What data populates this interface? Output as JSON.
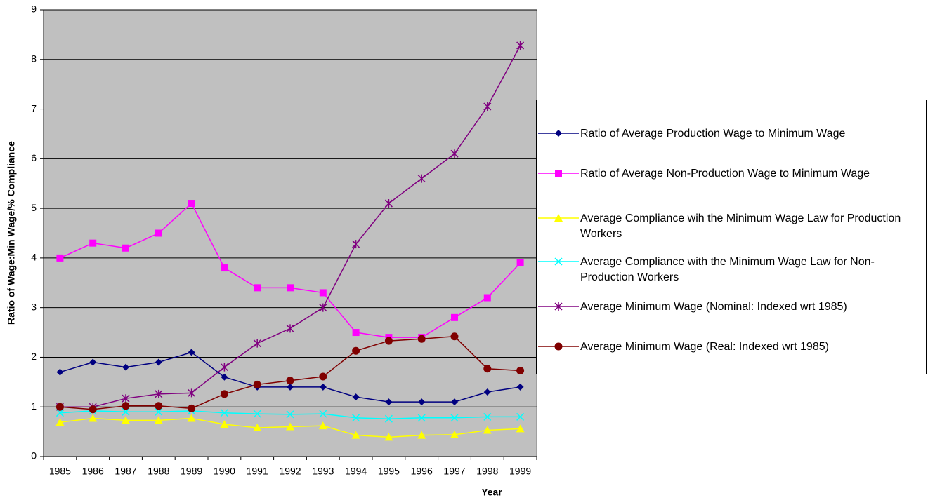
{
  "chart_data": {
    "type": "line",
    "x_label": "Year",
    "y_label": "Ratio of Wage:Min Wage/% Compliance",
    "categories": [
      "1985",
      "1986",
      "1987",
      "1988",
      "1989",
      "1990",
      "1991",
      "1992",
      "1993",
      "1994",
      "1995",
      "1996",
      "1997",
      "1998",
      "1999"
    ],
    "ylim": [
      0,
      9
    ],
    "yticks": [
      0,
      1,
      2,
      3,
      4,
      5,
      6,
      7,
      8,
      9
    ],
    "grid": true,
    "legend": "right",
    "series": [
      {
        "name": "Ratio of Average Production Wage to Minimum Wage",
        "color": "#000080",
        "marker": "diamond",
        "values": [
          1.7,
          1.9,
          1.8,
          1.9,
          2.1,
          1.6,
          1.4,
          1.4,
          1.4,
          1.2,
          1.1,
          1.1,
          1.1,
          1.3,
          1.4
        ]
      },
      {
        "name": "Ratio of Average Non-Production Wage to Minimum Wage",
        "color": "#FF00FF",
        "marker": "square",
        "values": [
          4.0,
          4.3,
          4.2,
          4.5,
          5.1,
          3.8,
          3.4,
          3.4,
          3.3,
          2.5,
          2.4,
          2.4,
          2.8,
          3.2,
          3.9
        ]
      },
      {
        "name": "Average Compliance wih the Minimum Wage Law for Production Workers",
        "color": "#FFFF00",
        "marker": "triangle",
        "values": [
          0.69,
          0.77,
          0.73,
          0.73,
          0.77,
          0.65,
          0.58,
          0.6,
          0.62,
          0.43,
          0.39,
          0.43,
          0.44,
          0.53,
          0.56
        ]
      },
      {
        "name": "Average Compliance with the Minimum Wage Law for Non-Production Workers",
        "color": "#00FFFF",
        "marker": "x",
        "values": [
          0.88,
          0.92,
          0.9,
          0.9,
          0.92,
          0.88,
          0.86,
          0.85,
          0.86,
          0.78,
          0.76,
          0.78,
          0.78,
          0.8,
          0.8
        ]
      },
      {
        "name": "Average Minimum Wage (Nominal: Indexed wrt 1985)",
        "color": "#800080",
        "marker": "star",
        "values": [
          1.0,
          1.0,
          1.17,
          1.26,
          1.28,
          1.8,
          2.28,
          2.58,
          3.0,
          4.28,
          5.1,
          5.6,
          6.1,
          7.05,
          8.28
        ]
      },
      {
        "name": "Average Minimum Wage (Real: Indexed wrt 1985)",
        "color": "#800000",
        "marker": "circle",
        "values": [
          1.0,
          0.95,
          1.02,
          1.02,
          0.97,
          1.26,
          1.45,
          1.53,
          1.61,
          2.13,
          2.33,
          2.37,
          2.42,
          1.77,
          1.73
        ]
      }
    ]
  }
}
